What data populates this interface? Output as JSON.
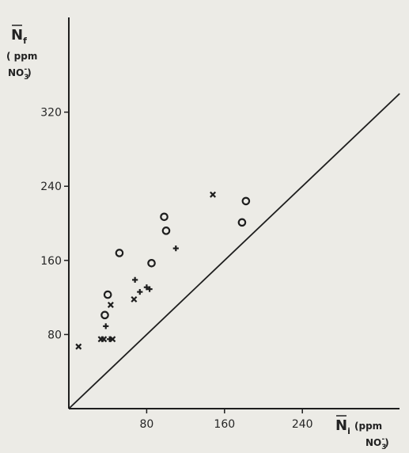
{
  "chart_data": {
    "type": "scatter",
    "title": "",
    "xlabel": {
      "symbol": "N",
      "subscript": "i",
      "unit_line1": "(ppm",
      "unit_line2": "NO",
      "unit_sub": "3",
      "unit_sup": "-",
      "unit_close": ")"
    },
    "ylabel": {
      "symbol": "N",
      "subscript": "f",
      "unit_line1": "( ppm",
      "unit_line2": "NO",
      "unit_sub": "3",
      "unit_sup": "-",
      "unit_close": ")"
    },
    "xlim": [
      0,
      330
    ],
    "ylim": [
      0,
      340
    ],
    "xticks": [
      80,
      160,
      240
    ],
    "yticks": [
      80,
      160,
      240,
      320
    ],
    "grid": false,
    "legend": "none",
    "reference_line": {
      "from": [
        0,
        0
      ],
      "to": [
        340,
        340
      ]
    },
    "series": [
      {
        "marker": "circle",
        "points": [
          [
            37,
            101
          ],
          [
            40,
            123
          ],
          [
            52,
            168
          ],
          [
            85,
            157
          ],
          [
            98,
            207
          ],
          [
            100,
            192
          ],
          [
            178,
            201
          ],
          [
            182,
            224
          ]
        ]
      },
      {
        "marker": "plus",
        "points": [
          [
            38,
            89
          ],
          [
            42,
            75
          ],
          [
            68,
            139
          ],
          [
            73,
            126
          ],
          [
            80,
            131
          ],
          [
            83,
            129
          ],
          [
            110,
            173
          ]
        ]
      },
      {
        "marker": "x",
        "points": [
          [
            10,
            67
          ],
          [
            33,
            75
          ],
          [
            36,
            75
          ],
          [
            45,
            75
          ],
          [
            43,
            112
          ],
          [
            67,
            118
          ],
          [
            148,
            231
          ]
        ]
      }
    ],
    "colors": {
      "ink": "#1e1e1e",
      "background": "#ecebe6"
    }
  }
}
